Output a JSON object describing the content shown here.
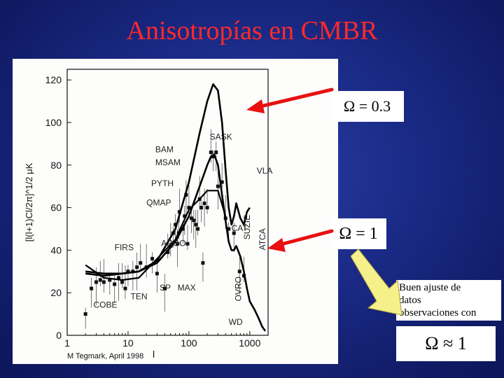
{
  "slide": {
    "title": "Anisotropías en CMBR",
    "box_omega_low": "Ω =  0.3",
    "box_omega_one": "Ω =  1",
    "fit_text_lines": [
      "Buen ajuste de",
      "datos",
      "observaciones con"
    ],
    "fit_omega": "Ω ≈  1",
    "credit": "M Tegmark, April 1998"
  },
  "colors": {
    "title": "#ff2a2a",
    "arrow_red": "#e81010",
    "arrow_yellow": "#f5f08a",
    "background": "#1a2a86"
  },
  "chart_data": {
    "type": "scatter",
    "title": "",
    "xlabel": "l",
    "ylabel": "[l(l+1)Cl/2π]^1/2 μK",
    "xscale": "log",
    "xlim": [
      1,
      2000
    ],
    "ylim": [
      0,
      125
    ],
    "x_ticks": [
      1,
      10,
      100,
      1000
    ],
    "y_ticks": [
      0,
      20,
      40,
      60,
      80,
      100,
      120
    ],
    "experiment_labels": [
      {
        "text": "SASK",
        "x": 220,
        "y": 92
      },
      {
        "text": "BAM",
        "x": 28,
        "y": 86
      },
      {
        "text": "MSAM",
        "x": 28,
        "y": 80
      },
      {
        "text": "VLA",
        "x": 1300,
        "y": 76
      },
      {
        "text": "PYTH",
        "x": 24,
        "y": 70
      },
      {
        "text": "QMAP",
        "x": 20,
        "y": 61
      },
      {
        "text": "FIRS",
        "x": 6,
        "y": 40
      },
      {
        "text": "ARGO",
        "x": 35,
        "y": 42
      },
      {
        "text": "SUZIE",
        "x": 1000,
        "y": 45
      },
      {
        "text": "ATCA",
        "x": 1800,
        "y": 40
      },
      {
        "text": "CAT",
        "x": 500,
        "y": 49
      },
      {
        "text": "SP",
        "x": 33,
        "y": 21
      },
      {
        "text": "MAX",
        "x": 65,
        "y": 21
      },
      {
        "text": "TEN",
        "x": 11,
        "y": 17
      },
      {
        "text": "COBE",
        "x": 2.7,
        "y": 13
      },
      {
        "text": "OVRO",
        "x": 720,
        "y": 16
      },
      {
        "text": "WD",
        "x": 450,
        "y": 5
      }
    ],
    "series": [
      {
        "name": "Ω = 0.3",
        "x": [
          2,
          4,
          8,
          15,
          30,
          60,
          100,
          150,
          200,
          250,
          300,
          350,
          400,
          450,
          500,
          550,
          600,
          700,
          800,
          900,
          1000
        ],
        "y": [
          29,
          28,
          29,
          30,
          35,
          50,
          72,
          95,
          110,
          118,
          115,
          100,
          78,
          60,
          52,
          56,
          62,
          55,
          52,
          58,
          60
        ]
      },
      {
        "name": "Ω = 1",
        "x": [
          2,
          4,
          8,
          15,
          30,
          60,
          100,
          150,
          200,
          230,
          260,
          300,
          350,
          400,
          450,
          500,
          550,
          600,
          700,
          800,
          900,
          1000,
          1200,
          1400,
          1600,
          1800
        ],
        "y": [
          30,
          29,
          29,
          30,
          34,
          44,
          56,
          70,
          80,
          84,
          85,
          80,
          66,
          54,
          44,
          40,
          40,
          42,
          37,
          30,
          22,
          16,
          12,
          8,
          4,
          2
        ]
      },
      {
        "name": "",
        "x": [
          2,
          4,
          8,
          15,
          30,
          60,
          100,
          150,
          200,
          300,
          400
        ],
        "y": [
          33,
          27,
          26,
          27,
          36,
          45,
          59,
          64,
          68,
          68,
          56
        ]
      }
    ],
    "points": [
      {
        "x": 2,
        "y": 10
      },
      {
        "x": 2.5,
        "y": 22
      },
      {
        "x": 3,
        "y": 25
      },
      {
        "x": 3.5,
        "y": 26
      },
      {
        "x": 4,
        "y": 25
      },
      {
        "x": 5,
        "y": 26
      },
      {
        "x": 6,
        "y": 24
      },
      {
        "x": 7,
        "y": 27
      },
      {
        "x": 8,
        "y": 25
      },
      {
        "x": 9,
        "y": 22
      },
      {
        "x": 10,
        "y": 30
      },
      {
        "x": 12,
        "y": 30
      },
      {
        "x": 14,
        "y": 32
      },
      {
        "x": 16,
        "y": 34
      },
      {
        "x": 20,
        "y": 32
      },
      {
        "x": 25,
        "y": 36
      },
      {
        "x": 30,
        "y": 29
      },
      {
        "x": 40,
        "y": 22
      },
      {
        "x": 45,
        "y": 39
      },
      {
        "x": 50,
        "y": 42
      },
      {
        "x": 55,
        "y": 48
      },
      {
        "x": 60,
        "y": 52
      },
      {
        "x": 65,
        "y": 43
      },
      {
        "x": 68,
        "y": 48
      },
      {
        "x": 70,
        "y": 58
      },
      {
        "x": 80,
        "y": 50
      },
      {
        "x": 85,
        "y": 56
      },
      {
        "x": 90,
        "y": 66
      },
      {
        "x": 95,
        "y": 43
      },
      {
        "x": 100,
        "y": 60
      },
      {
        "x": 110,
        "y": 55
      },
      {
        "x": 120,
        "y": 54
      },
      {
        "x": 130,
        "y": 52
      },
      {
        "x": 140,
        "y": 50
      },
      {
        "x": 150,
        "y": 64
      },
      {
        "x": 160,
        "y": 60
      },
      {
        "x": 170,
        "y": 34
      },
      {
        "x": 180,
        "y": 62
      },
      {
        "x": 200,
        "y": 60
      },
      {
        "x": 230,
        "y": 86
      },
      {
        "x": 250,
        "y": 84
      },
      {
        "x": 280,
        "y": 86
      },
      {
        "x": 300,
        "y": 70
      },
      {
        "x": 350,
        "y": 72
      },
      {
        "x": 400,
        "y": 55
      },
      {
        "x": 450,
        "y": 50
      },
      {
        "x": 550,
        "y": 48
      },
      {
        "x": 680,
        "y": 30
      },
      {
        "x": 800,
        "y": 28
      }
    ]
  }
}
